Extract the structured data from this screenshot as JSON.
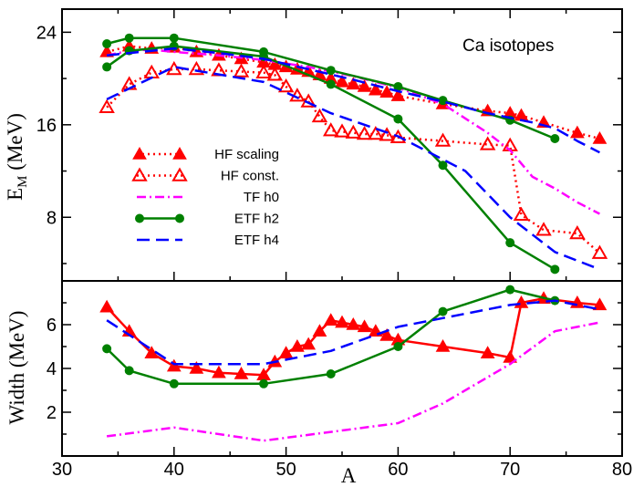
{
  "chart_data": {
    "type": "line",
    "annotation": "Ca isotopes",
    "xlabel": "A",
    "xlim": [
      30,
      80
    ],
    "xticks": [
      30,
      40,
      50,
      60,
      70,
      80
    ],
    "top_panel": {
      "ylabel_main": "E",
      "ylabel_sub": "M",
      "ylabel_unit": " (MeV)",
      "ylim": [
        2.5,
        26
      ],
      "yticks": [
        8,
        16,
        24
      ],
      "series": [
        {
          "key": "hf_scaling",
          "name": "HF scaling",
          "color": "#ff0000",
          "dash": "2,4",
          "marker": "triangle-filled",
          "x": [
            34,
            36,
            38,
            40,
            42,
            44,
            46,
            48,
            49,
            50,
            51,
            52,
            53,
            54,
            55,
            56,
            57,
            58,
            59,
            60,
            64,
            68,
            70,
            71,
            73,
            76,
            78
          ],
          "y": [
            22.3,
            22.8,
            22.6,
            22.7,
            22.3,
            22,
            21.7,
            21.4,
            21.2,
            21,
            20.8,
            20.6,
            20.3,
            20,
            19.7,
            19.5,
            19.3,
            19,
            18.8,
            18.5,
            17.8,
            17.2,
            17,
            16.8,
            16.2,
            15.3,
            14.8
          ]
        },
        {
          "key": "hf_const",
          "name": "HF const.",
          "color": "#ff0000",
          "dash": "2,4",
          "marker": "triangle-open",
          "x": [
            34,
            36,
            38,
            40,
            42,
            44,
            46,
            48,
            49,
            50,
            51,
            52,
            53,
            54,
            55,
            56,
            57,
            58,
            59,
            60,
            64,
            68,
            70,
            71,
            73,
            76,
            78
          ],
          "y": [
            17.5,
            19.5,
            20.5,
            20.8,
            20.8,
            20.7,
            20.6,
            20.5,
            20.3,
            19.3,
            18.5,
            18,
            16.7,
            15.5,
            15.4,
            15.3,
            15.2,
            15.2,
            15.1,
            14.9,
            14.6,
            14.3,
            14.2,
            8.2,
            6.9,
            6.6,
            4.9
          ]
        },
        {
          "key": "tf_h0",
          "name": "TF h0",
          "color": "#ff00ff",
          "dash": "10,4,2,4",
          "marker": "none",
          "x": [
            34,
            36,
            38,
            40,
            44,
            48,
            52,
            56,
            60,
            64,
            68,
            70,
            72,
            74,
            76,
            78
          ],
          "y": [
            22,
            22.4,
            22.5,
            22.3,
            22,
            21.6,
            21,
            20.2,
            19.2,
            17.8,
            15.3,
            13.8,
            11.5,
            10.5,
            9.3,
            8.3
          ]
        },
        {
          "key": "etf_h2",
          "name": "ETF h2",
          "color": "#008000",
          "dash": "",
          "marker": "circle",
          "x": [
            34,
            36,
            40,
            48,
            54,
            60,
            64,
            70,
            74
          ],
          "y": [
            21,
            22.4,
            22.8,
            21.9,
            19.5,
            16.5,
            12.5,
            5.8,
            3.5
          ]
        },
        {
          "key": "etf_h2_upper",
          "name": "",
          "color": "#008000",
          "dash": "",
          "marker": "circle",
          "x": [
            34,
            36,
            40,
            48,
            54,
            60,
            64,
            70,
            74
          ],
          "y": [
            23,
            23.5,
            23.5,
            22.3,
            20.7,
            19.3,
            18.1,
            16.4,
            14.8
          ]
        },
        {
          "key": "etf_h4",
          "name": "ETF h4",
          "color": "#0000ff",
          "dash": "14,7",
          "marker": "none",
          "x": [
            34,
            40,
            48,
            54,
            60,
            66,
            70,
            74,
            78
          ],
          "y": [
            18.2,
            21,
            19.7,
            17,
            15,
            12,
            8,
            5,
            3.5
          ]
        },
        {
          "key": "etf_h4_upper",
          "name": "",
          "color": "#0000ff",
          "dash": "14,7",
          "marker": "none",
          "x": [
            34,
            38,
            40,
            44,
            48,
            52,
            56,
            60,
            64,
            68,
            72,
            74,
            76,
            78
          ],
          "y": [
            22,
            22.4,
            22.6,
            22.2,
            21.7,
            20.8,
            19.9,
            18.9,
            18,
            17,
            16.2,
            15.7,
            14.6,
            13.6
          ]
        }
      ]
    },
    "bottom_panel": {
      "ylabel": "Width (MeV)",
      "ylim": [
        0,
        8
      ],
      "yticks": [
        2,
        4,
        6
      ],
      "series": [
        {
          "key": "w_hf",
          "name": "HF scaling",
          "color": "#ff0000",
          "dash": "",
          "marker": "triangle-filled",
          "x": [
            34,
            36,
            38,
            40,
            42,
            44,
            46,
            48,
            49,
            50,
            51,
            52,
            53,
            54,
            55,
            56,
            57,
            58,
            59,
            60,
            64,
            68,
            70,
            71,
            73,
            76,
            78
          ],
          "y": [
            6.8,
            5.7,
            4.7,
            4.1,
            4,
            3.8,
            3.75,
            3.7,
            4.3,
            4.7,
            5,
            5.1,
            5.7,
            6.2,
            6.1,
            6,
            5.9,
            5.7,
            5.5,
            5.3,
            5,
            4.7,
            4.5,
            7,
            7.2,
            7,
            6.9
          ]
        },
        {
          "key": "w_tf",
          "name": "TF h0",
          "color": "#ff00ff",
          "dash": "10,4,2,4",
          "marker": "none",
          "x": [
            34,
            40,
            48,
            54,
            60,
            64,
            70,
            74,
            78
          ],
          "y": [
            0.9,
            1.3,
            0.7,
            1.1,
            1.5,
            2.4,
            4.2,
            5.7,
            6.1
          ]
        },
        {
          "key": "w_etf_h2",
          "name": "ETF h2",
          "color": "#008000",
          "dash": "",
          "marker": "circle",
          "x": [
            34,
            36,
            40,
            48,
            54,
            60,
            64,
            70,
            74
          ],
          "y": [
            4.9,
            3.9,
            3.3,
            3.3,
            3.75,
            5,
            6.6,
            7.6,
            7.1
          ]
        },
        {
          "key": "w_etf_h4",
          "name": "ETF h4",
          "color": "#0000ff",
          "dash": "14,7",
          "marker": "none",
          "x": [
            34,
            40,
            48,
            54,
            60,
            64,
            70,
            74,
            78
          ],
          "y": [
            6.2,
            4.2,
            4.2,
            4.8,
            5.9,
            6.3,
            6.9,
            7.1,
            6.7
          ]
        }
      ]
    },
    "legend": [
      {
        "label": "HF scaling",
        "series": "hf_scaling"
      },
      {
        "label": "HF const.",
        "series": "hf_const"
      },
      {
        "label": "TF h0",
        "series": "tf_h0"
      },
      {
        "label": "ETF h2",
        "series": "etf_h2"
      },
      {
        "label": "ETF h4",
        "series": "etf_h4"
      }
    ]
  }
}
